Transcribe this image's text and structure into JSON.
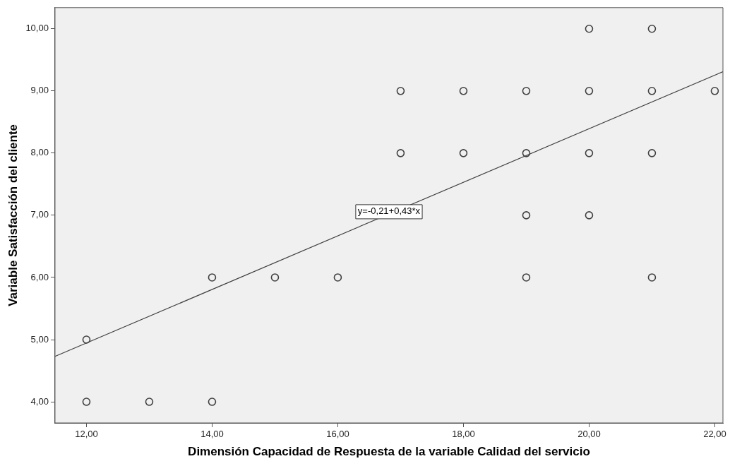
{
  "chart_data": {
    "type": "scatter",
    "xlabel": "Dimensión Capacidad de Respuesta de la variable Calidad del servicio",
    "ylabel": "Variable Satisfacción del cliente",
    "x": [
      12,
      13,
      14,
      12,
      14,
      15,
      16,
      17,
      17,
      18,
      18,
      19,
      19,
      19,
      19,
      20,
      20,
      20,
      20,
      21,
      21,
      21,
      21,
      22
    ],
    "series": [
      {
        "color": "#404040",
        "values": [
          4,
          4,
          4,
          5,
          6,
          6,
          6,
          8,
          9,
          8,
          9,
          9,
          8,
          7,
          6,
          10,
          9,
          8,
          7,
          10,
          9,
          8,
          6,
          9
        ]
      },
      {
        "type": "line",
        "color": "#404040",
        "marker": "none",
        "x": [
          11.5,
          22.13
        ],
        "values": [
          4.73,
          9.31
        ]
      }
    ],
    "xlim": [
      11.5,
      22.13
    ],
    "ylim": [
      3.66,
      10.34
    ],
    "xticks": [
      {
        "value": 12,
        "label": "12,00"
      },
      {
        "value": 14,
        "label": "14,00"
      },
      {
        "value": 16,
        "label": "16,00"
      },
      {
        "value": 18,
        "label": "18,00"
      },
      {
        "value": 20,
        "label": "20,00"
      },
      {
        "value": 22,
        "label": "22,00"
      }
    ],
    "yticks": [
      {
        "value": 4,
        "label": "4,00"
      },
      {
        "value": 5,
        "label": "5,00"
      },
      {
        "value": 6,
        "label": "6,00"
      },
      {
        "value": 7,
        "label": "7,00"
      },
      {
        "value": 8,
        "label": "8,00"
      },
      {
        "value": 9,
        "label": "9,00"
      },
      {
        "value": 10,
        "label": "10,00"
      }
    ],
    "annotations": [
      "y=-0,21+0,43*x"
    ],
    "marker": "circle",
    "legend": false
  }
}
